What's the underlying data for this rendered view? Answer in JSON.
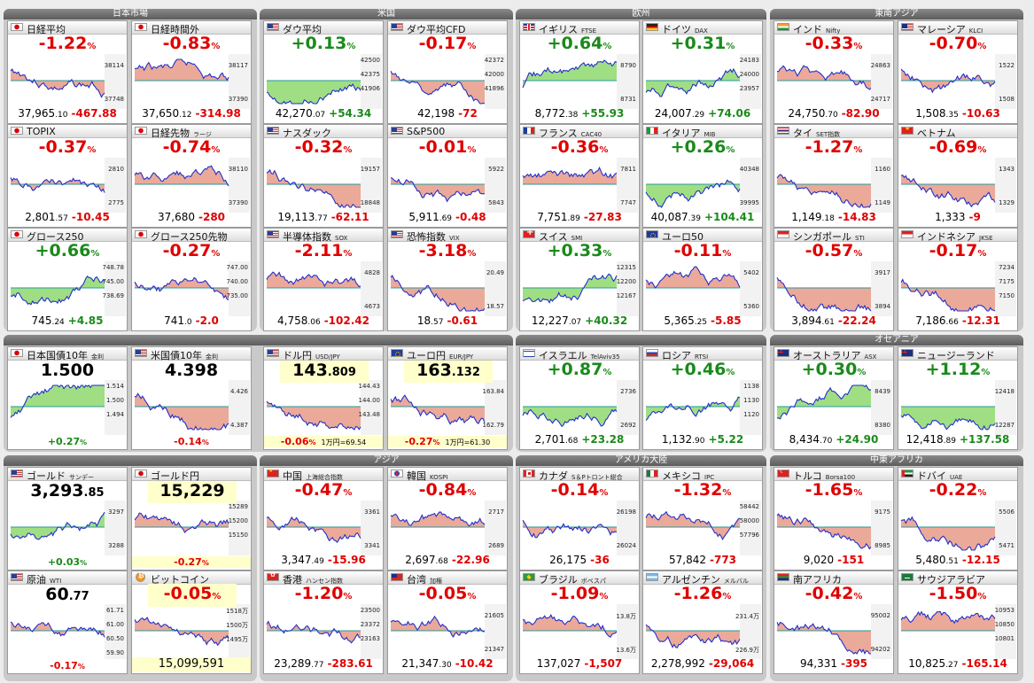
{
  "colors": {
    "up": "#1a8a1a",
    "down": "#e00000",
    "fill_up": "#8fd86f",
    "fill_down": "#e89a88",
    "line": "#2230c8",
    "avg": "#2a9a9a"
  },
  "groups": [
    {
      "title": "日本市場"
    },
    {
      "title": "米国"
    },
    {
      "title": "欧州"
    },
    {
      "title": "東南アジア"
    },
    {
      "title": "オセアニア"
    },
    {
      "title": "アジア"
    },
    {
      "title": "アメリカ大陸"
    },
    {
      "title": "中東アフリカ"
    }
  ],
  "cells": [
    {
      "flag": "jp",
      "name": "日経平均",
      "sub": "",
      "pct_main": "-1.22",
      "pct_unit": "%",
      "price_int": "37,965",
      "price_dec": ".10",
      "change": "-467.88",
      "ticks": [
        "38114",
        "37748"
      ],
      "icon": "japan-flag-icon"
    },
    {
      "flag": "jp",
      "name": "日経時間外",
      "sub": "",
      "pct_main": "-0.83",
      "pct_unit": "%",
      "price_int": "37,650",
      "price_dec": ".12",
      "change": "-314.98",
      "ticks": [
        "38117",
        "37390"
      ],
      "icon": "japan-flag-icon"
    },
    {
      "flag": "us",
      "name": "ダウ平均",
      "sub": "",
      "pct_main": "+0.13",
      "pct_unit": "%",
      "price_int": "42,270",
      "price_dec": ".07",
      "change": "+54.34",
      "ticks": [
        "42500",
        "42375",
        "41906"
      ],
      "icon": "usa-flag-icon"
    },
    {
      "flag": "us",
      "name": "ダウ平均CFD",
      "sub": "",
      "pct_main": "-0.17",
      "pct_unit": "%",
      "price_int": "42,198",
      "price_dec": "",
      "change": "-72",
      "ticks": [
        "42372",
        "42000",
        "41896"
      ],
      "icon": "usa-flag-icon"
    },
    {
      "flag": "uk",
      "name": "イギリス",
      "sub": "FTSE",
      "pct_main": "+0.64",
      "pct_unit": "%",
      "price_int": "8,772",
      "price_dec": ".38",
      "change": "+55.93",
      "ticks": [
        "8790",
        "8731"
      ],
      "icon": "uk-flag-icon"
    },
    {
      "flag": "de",
      "name": "ドイツ",
      "sub": "DAX",
      "pct_main": "+0.31",
      "pct_unit": "%",
      "price_int": "24,007",
      "price_dec": ".29",
      "change": "+74.06",
      "ticks": [
        "24183",
        "24000",
        "23957"
      ],
      "icon": "germany-flag-icon"
    },
    {
      "flag": "in",
      "name": "インド",
      "sub": "Nifty",
      "pct_main": "-0.33",
      "pct_unit": "%",
      "price_int": "24,750",
      "price_dec": ".70",
      "change": "-82.90",
      "ticks": [
        "24863",
        "24717"
      ],
      "icon": "india-flag-icon"
    },
    {
      "flag": "my",
      "name": "マレーシア",
      "sub": "KLCI",
      "pct_main": "-0.70",
      "pct_unit": "%",
      "price_int": "1,508",
      "price_dec": ".35",
      "change": "-10.63",
      "ticks": [
        "1522",
        "1508"
      ],
      "icon": "malaysia-flag-icon"
    },
    {
      "flag": "jp",
      "name": "TOPIX",
      "sub": "",
      "pct_main": "-0.37",
      "pct_unit": "%",
      "price_int": "2,801",
      "price_dec": ".57",
      "change": "-10.45",
      "ticks": [
        "2810",
        "2775"
      ],
      "icon": "japan-flag-icon"
    },
    {
      "flag": "jp",
      "name": "日経先物",
      "sub": "ラージ",
      "pct_main": "-0.74",
      "pct_unit": "%",
      "price_int": "37,680",
      "price_dec": "",
      "change": "-280",
      "ticks": [
        "38110",
        "37390"
      ],
      "icon": "japan-flag-icon"
    },
    {
      "flag": "us",
      "name": "ナスダック",
      "sub": "",
      "pct_main": "-0.32",
      "pct_unit": "%",
      "price_int": "19,113",
      "price_dec": ".77",
      "change": "-62.11",
      "ticks": [
        "19157",
        "18848"
      ],
      "icon": "usa-flag-icon"
    },
    {
      "flag": "us",
      "name": "S&P500",
      "sub": "",
      "pct_main": "-0.01",
      "pct_unit": "%",
      "price_int": "5,911",
      "price_dec": ".69",
      "change": "-0.48",
      "ticks": [
        "5922",
        "5843"
      ],
      "icon": "usa-flag-icon"
    },
    {
      "flag": "fr",
      "name": "フランス",
      "sub": "CAC40",
      "pct_main": "-0.36",
      "pct_unit": "%",
      "price_int": "7,751",
      "price_dec": ".89",
      "change": "-27.83",
      "ticks": [
        "7811",
        "7747"
      ],
      "icon": "france-flag-icon"
    },
    {
      "flag": "it",
      "name": "イタリア",
      "sub": "MIB",
      "pct_main": "+0.26",
      "pct_unit": "%",
      "price_int": "40,087",
      "price_dec": ".39",
      "change": "+104.41",
      "ticks": [
        "40348",
        "39995"
      ],
      "icon": "italy-flag-icon"
    },
    {
      "flag": "th",
      "name": "タイ",
      "sub": "SET指数",
      "pct_main": "-1.27",
      "pct_unit": "%",
      "price_int": "1,149",
      "price_dec": ".18",
      "change": "-14.83",
      "ticks": [
        "1160",
        "1149"
      ],
      "icon": "thailand-flag-icon"
    },
    {
      "flag": "vn",
      "name": "ベトナム",
      "sub": "",
      "pct_main": "-0.69",
      "pct_unit": "%",
      "price_int": "1,333",
      "price_dec": "",
      "change": "-9",
      "ticks": [
        "1343",
        "1329"
      ],
      "icon": "vietnam-flag-icon"
    },
    {
      "flag": "jp",
      "name": "グロース250",
      "sub": "",
      "pct_main": "+0.66",
      "pct_unit": "%",
      "price_int": "745",
      "price_dec": ".24",
      "change": "+4.85",
      "ticks": [
        "748.78",
        "745.00",
        "738.69"
      ],
      "icon": "japan-flag-icon"
    },
    {
      "flag": "jp",
      "name": "グロース250先物",
      "sub": "",
      "pct_main": "-0.27",
      "pct_unit": "%",
      "price_int": "741",
      "price_dec": ".0",
      "change": "-2.0",
      "ticks": [
        "747.00",
        "740.00",
        "735.00"
      ],
      "icon": "japan-flag-icon"
    },
    {
      "flag": "us",
      "name": "半導体指数",
      "sub": "SOX",
      "pct_main": "-2.11",
      "pct_unit": "%",
      "price_int": "4,758",
      "price_dec": ".06",
      "change": "-102.42",
      "ticks": [
        "4828",
        "4673"
      ],
      "icon": "usa-flag-icon"
    },
    {
      "flag": "us",
      "name": "恐怖指数",
      "sub": "VIX",
      "pct_main": "-3.18",
      "pct_unit": "%",
      "price_int": "18",
      "price_dec": ".57",
      "change": "-0.61",
      "ticks": [
        "20.49",
        "18.57"
      ],
      "icon": "usa-flag-icon"
    },
    {
      "flag": "ch",
      "name": "スイス",
      "sub": "SMI",
      "pct_main": "+0.33",
      "pct_unit": "%",
      "price_int": "12,227",
      "price_dec": ".07",
      "change": "+40.32",
      "ticks": [
        "12315",
        "12200",
        "12167"
      ],
      "icon": "switzerland-flag-icon"
    },
    {
      "flag": "eu",
      "name": "ユーロ50",
      "sub": "",
      "pct_main": "-0.11",
      "pct_unit": "%",
      "price_int": "5,365",
      "price_dec": ".25",
      "change": "-5.85",
      "ticks": [
        "5402",
        "5360"
      ],
      "icon": "eu-flag-icon"
    },
    {
      "flag": "sg",
      "name": "シンガポール",
      "sub": "STI",
      "pct_main": "-0.57",
      "pct_unit": "%",
      "price_int": "3,894",
      "price_dec": ".61",
      "change": "-22.24",
      "ticks": [
        "3917",
        "3894"
      ],
      "icon": "singapore-flag-icon"
    },
    {
      "flag": "id",
      "name": "インドネシア",
      "sub": "JKSE",
      "pct_main": "-0.17",
      "pct_unit": "%",
      "price_int": "7,186",
      "price_dec": ".66",
      "change": "-12.31",
      "ticks": [
        "7234",
        "7175",
        "7150"
      ],
      "icon": "indonesia-flag-icon"
    },
    {
      "flag": "jp",
      "name": "日本国債10年",
      "sub": "金利",
      "value_int": "1.500",
      "value_dec": "",
      "bottom": "+0.27",
      "bottom_unit": "%",
      "ticks": [
        "1.514",
        "1.500",
        "1.494"
      ],
      "icon": "japan-flag-icon",
      "special": "bond"
    },
    {
      "flag": "us",
      "name": "米国債10年",
      "sub": "金利",
      "value_int": "4.398",
      "value_dec": "",
      "bottom": "-0.14",
      "bottom_unit": "%",
      "ticks": [
        "4.426",
        "4.387"
      ],
      "icon": "usa-flag-icon",
      "special": "bond"
    },
    {
      "flag": "us",
      "name": "ドル円",
      "sub": "USD/JPY",
      "value_int": "143",
      "value_dec": ".809",
      "bottom": "-0.06",
      "bottom_unit": "%",
      "extra": "1万円=69.54",
      "ticks": [
        "144.43",
        "144.00",
        "143.48"
      ],
      "icon": "usa-flag-icon",
      "special": "fx"
    },
    {
      "flag": "eu",
      "name": "ユーロ円",
      "sub": "EUR/JPY",
      "value_int": "163",
      "value_dec": ".132",
      "bottom": "-0.27",
      "bottom_unit": "%",
      "extra": "1万円=61.30",
      "ticks": [
        "163.84",
        "162.79"
      ],
      "icon": "eu-flag-icon",
      "special": "fx"
    },
    {
      "flag": "il",
      "name": "イスラエル",
      "sub": "TelAviv35",
      "pct_main": "+0.87",
      "pct_unit": "%",
      "price_int": "2,701",
      "price_dec": ".68",
      "change": "+23.28",
      "ticks": [
        "2736",
        "2692"
      ],
      "icon": "israel-flag-icon"
    },
    {
      "flag": "ru",
      "name": "ロシア",
      "sub": "RTSI",
      "pct_main": "+0.46",
      "pct_unit": "%",
      "price_int": "1,132",
      "price_dec": ".90",
      "change": "+5.22",
      "ticks": [
        "1138",
        "1130",
        "1120"
      ],
      "icon": "russia-flag-icon"
    },
    {
      "flag": "au",
      "name": "オーストラリア",
      "sub": "ASX",
      "pct_main": "+0.30",
      "pct_unit": "%",
      "price_int": "8,434",
      "price_dec": ".70",
      "change": "+24.90",
      "ticks": [
        "8439",
        "8380"
      ],
      "icon": "australia-flag-icon"
    },
    {
      "flag": "nz",
      "name": "ニュージーランド",
      "sub": "",
      "pct_main": "+1.12",
      "pct_unit": "%",
      "price_int": "12,418",
      "price_dec": ".89",
      "change": "+137.58",
      "ticks": [
        "12418",
        "12287"
      ],
      "icon": "newzealand-flag-icon"
    },
    {
      "flag": "us",
      "name": "ゴールド",
      "sub": "サンデー",
      "value_int": "3,293",
      "value_dec": ".85",
      "bottom": "+0.03",
      "bottom_unit": "%",
      "ticks": [
        "3297",
        "3288"
      ],
      "icon": "usa-flag-icon",
      "special": "bond"
    },
    {
      "flag": "jp",
      "name": "ゴールド円",
      "sub": "",
      "value_int": "15,229",
      "value_dec": "",
      "bottom": "-0.27",
      "bottom_unit": "%",
      "ticks": [
        "15289",
        "15200",
        "15150"
      ],
      "icon": "japan-flag-icon",
      "special": "fx"
    },
    {
      "flag": "cn",
      "name": "中国",
      "sub": "上海総合指数",
      "pct_main": "-0.47",
      "pct_unit": "%",
      "price_int": "3,347",
      "price_dec": ".49",
      "change": "-15.96",
      "ticks": [
        "3361",
        "3341"
      ],
      "icon": "china-flag-icon"
    },
    {
      "flag": "kr",
      "name": "韓国",
      "sub": "KOSPI",
      "pct_main": "-0.84",
      "pct_unit": "%",
      "price_int": "2,697",
      "price_dec": ".68",
      "change": "-22.96",
      "ticks": [
        "2717",
        "2689"
      ],
      "icon": "korea-flag-icon"
    },
    {
      "flag": "ca",
      "name": "カナダ",
      "sub": "S＆Pトロント総合",
      "pct_main": "-0.14",
      "pct_unit": "%",
      "price_int": "26,175",
      "price_dec": "",
      "change": "-36",
      "ticks": [
        "26198",
        "26024"
      ],
      "icon": "canada-flag-icon"
    },
    {
      "flag": "mx",
      "name": "メキシコ",
      "sub": "IPC",
      "pct_main": "-1.32",
      "pct_unit": "%",
      "price_int": "57,842",
      "price_dec": "",
      "change": "-773",
      "ticks": [
        "58442",
        "58000",
        "57796"
      ],
      "icon": "mexico-flag-icon"
    },
    {
      "flag": "tr",
      "name": "トルコ",
      "sub": "Borsa100",
      "pct_main": "-1.65",
      "pct_unit": "%",
      "price_int": "9,020",
      "price_dec": "",
      "change": "-151",
      "ticks": [
        "9175",
        "8985"
      ],
      "icon": "turkey-flag-icon"
    },
    {
      "flag": "ae",
      "name": "ドバイ",
      "sub": "UAE",
      "pct_main": "-0.22",
      "pct_unit": "%",
      "price_int": "5,480",
      "price_dec": ".51",
      "change": "-12.15",
      "ticks": [
        "5506",
        "5471"
      ],
      "icon": "uae-flag-icon"
    },
    {
      "flag": "us",
      "name": "原油",
      "sub": "WTI",
      "value_int": "60",
      "value_dec": ".77",
      "bottom": "-0.17",
      "bottom_unit": "%",
      "ticks": [
        "61.71",
        "61.00",
        "60.50",
        "59.90"
      ],
      "icon": "usa-flag-icon",
      "special": "bond"
    },
    {
      "flag": "btc",
      "name": "ビットコイン",
      "sub": "",
      "pct_main": "-0.05",
      "pct_unit": "%",
      "price_int": "15,099,591",
      "price_dec": "",
      "change": "",
      "ticks": [
        "1518万",
        "1500万",
        "1495万"
      ],
      "icon": "bitcoin-icon",
      "special": "btc"
    },
    {
      "flag": "hk",
      "name": "香港",
      "sub": "ハンセン指数",
      "pct_main": "-1.20",
      "pct_unit": "%",
      "price_int": "23,289",
      "price_dec": ".77",
      "change": "-283.61",
      "ticks": [
        "23500",
        "23372",
        "23163"
      ],
      "icon": "hongkong-flag-icon"
    },
    {
      "flag": "tw",
      "name": "台湾",
      "sub": "加権",
      "pct_main": "-0.05",
      "pct_unit": "%",
      "price_int": "21,347",
      "price_dec": ".30",
      "change": "-10.42",
      "ticks": [
        "21605",
        "21347"
      ],
      "icon": "taiwan-flag-icon"
    },
    {
      "flag": "br",
      "name": "ブラジル",
      "sub": "ボベスパ",
      "pct_main": "-1.09",
      "pct_unit": "%",
      "price_int": "137,027",
      "price_dec": "",
      "change": "-1,507",
      "ticks": [
        "13.8万",
        "13.6万"
      ],
      "icon": "brazil-flag-icon"
    },
    {
      "flag": "ar",
      "name": "アルゼンチン",
      "sub": "メルバル",
      "pct_main": "-1.26",
      "pct_unit": "%",
      "price_int": "2,278,992",
      "price_dec": "",
      "change": "-29,064",
      "ticks": [
        "231.4万",
        "226.9万"
      ],
      "icon": "argentina-flag-icon"
    },
    {
      "flag": "za",
      "name": "南アフリカ",
      "sub": "",
      "pct_main": "-0.42",
      "pct_unit": "%",
      "price_int": "94,331",
      "price_dec": "",
      "change": "-395",
      "ticks": [
        "95002",
        "94202"
      ],
      "icon": "southafrica-flag-icon"
    },
    {
      "flag": "sa",
      "name": "サウジアラビア",
      "sub": "",
      "pct_main": "-1.50",
      "pct_unit": "%",
      "price_int": "10,825",
      "price_dec": ".27",
      "change": "-165.14",
      "ticks": [
        "10953",
        "10850",
        "10801"
      ],
      "icon": "saudi-flag-icon"
    }
  ]
}
